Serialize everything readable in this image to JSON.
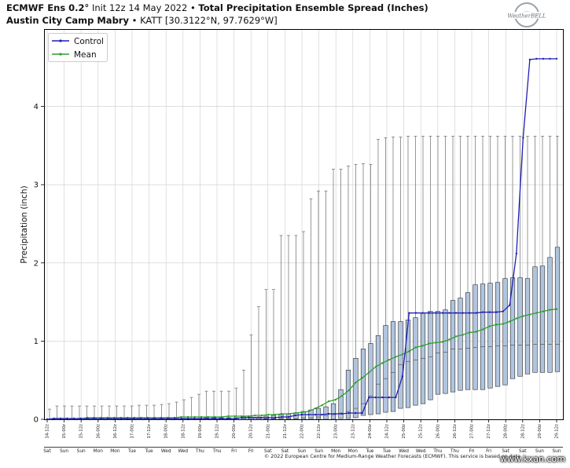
{
  "header": {
    "model": "ECMWF Ens 0.2",
    "degree": "°",
    "init": "Init 12z 14 May 2022",
    "bullet": "•",
    "product": "Total Precipitation Ensemble Spread (Inches)",
    "location": "Austin City Camp Mabry",
    "station": "KATT [30.3122°N, 97.7629°W]"
  },
  "logo_text": "WeatherBELL",
  "credit": "© 2022 European Centre for Medium-Range Weather Forecasts (ECMWF). This service is based on data",
  "watermark": "www.kxan.com",
  "colors": {
    "control": "#1f1fb4",
    "mean": "#2ca02c",
    "box_fill": "#b0c4de",
    "box_edge": "#2b2b2b",
    "grid": "#cccccc"
  },
  "chart_data": {
    "type": "box",
    "title": "Total Precipitation Ensemble Spread (Inches)",
    "ylabel": "Precipitation (inch)",
    "ylim": [
      0,
      4.97
    ],
    "yticks": [
      0,
      1,
      2,
      3,
      4
    ],
    "legend": {
      "position": "top-left",
      "entries": [
        "Control",
        "Mean"
      ]
    },
    "times": [
      "14-12z",
      "15-00z",
      "15-12z",
      "16-00z",
      "16-12z",
      "17-00z",
      "17-12z",
      "18-00z",
      "18-12z",
      "19-00z",
      "19-12z",
      "20-00z",
      "20-12z",
      "21-00z",
      "21-12z",
      "22-00z",
      "22-12z",
      "23-00z",
      "23-12z",
      "24-00z",
      "24-12z",
      "25-00z",
      "25-12z",
      "26-00z",
      "26-12z",
      "27-00z",
      "27-12z",
      "28-00z",
      "28-12z",
      "29-00z",
      "29-12z"
    ],
    "days": [
      "Sat",
      "Sun",
      "Sun",
      "Mon",
      "Mon",
      "Tue",
      "Tue",
      "Wed",
      "Wed",
      "Thu",
      "Thu",
      "Fri",
      "Fri",
      "Sat",
      "Sat",
      "Sun",
      "Sun",
      "Mon",
      "Mon",
      "Tue",
      "Tue",
      "Wed",
      "Wed",
      "Thu",
      "Thu",
      "Fri",
      "Fri",
      "Sat",
      "Sat",
      "Sun",
      "Sun"
    ],
    "control": [
      0,
      0.01,
      0.01,
      0.01,
      0.01,
      0.01,
      0.01,
      0.01,
      0.01,
      0.01,
      0.01,
      0.01,
      0.01,
      0.01,
      0.01,
      0.01,
      0.01,
      0.01,
      0.01,
      0.01,
      0.01,
      0.01,
      0.01,
      0.01,
      0.01,
      0.01,
      0.01,
      0.01,
      0.01,
      0.02,
      0.02,
      0.02,
      0.02,
      0.02,
      0.02,
      0.03,
      0.03,
      0.05,
      0.06,
      0.06,
      0.06,
      0.06,
      0.07,
      0.07,
      0.07,
      0.08,
      0.08,
      0.08,
      0.28,
      0.28,
      0.28,
      0.28,
      0.28,
      0.55,
      1.36,
      1.36,
      1.36,
      1.36,
      1.36,
      1.36,
      1.36,
      1.36,
      1.36,
      1.36,
      1.36,
      1.37,
      1.37,
      1.37,
      1.38,
      1.46,
      2.12,
      3.6,
      4.6,
      4.61,
      4.61,
      4.61,
      4.61
    ],
    "mean": [
      0,
      0.01,
      0.01,
      0.01,
      0.01,
      0.01,
      0.02,
      0.02,
      0.02,
      0.02,
      0.02,
      0.02,
      0.02,
      0.02,
      0.02,
      0.02,
      0.02,
      0.02,
      0.02,
      0.02,
      0.03,
      0.03,
      0.03,
      0.03,
      0.03,
      0.03,
      0.03,
      0.04,
      0.04,
      0.04,
      0.04,
      0.05,
      0.05,
      0.06,
      0.06,
      0.07,
      0.07,
      0.08,
      0.09,
      0.1,
      0.14,
      0.18,
      0.23,
      0.25,
      0.3,
      0.37,
      0.47,
      0.53,
      0.6,
      0.67,
      0.72,
      0.76,
      0.8,
      0.83,
      0.87,
      0.92,
      0.94,
      0.97,
      0.98,
      0.99,
      1.02,
      1.06,
      1.08,
      1.11,
      1.12,
      1.15,
      1.19,
      1.21,
      1.22,
      1.25,
      1.29,
      1.32,
      1.34,
      1.36,
      1.38,
      1.4,
      1.41
    ],
    "box_q1": [
      0,
      0,
      0,
      0,
      0,
      0,
      0,
      0,
      0,
      0,
      0,
      0,
      0,
      0,
      0,
      0,
      0,
      0,
      0,
      0,
      0,
      0,
      0,
      0,
      0,
      0,
      0,
      0,
      0,
      0,
      0,
      0,
      0,
      0,
      0,
      0,
      0,
      0,
      0,
      0.01,
      0.01,
      0.02,
      0.05,
      0.06,
      0.07,
      0.09,
      0.1,
      0.14,
      0.15,
      0.18,
      0.2,
      0.25,
      0.32,
      0.33,
      0.35,
      0.37,
      0.38,
      0.38,
      0.38,
      0.4,
      0.42,
      0.44,
      0.52,
      0.55,
      0.58,
      0.6,
      0.6,
      0.6,
      0.61,
      0.61,
      0.62,
      0.62,
      0.62,
      0.62,
      0.62
    ],
    "box_med": [
      0,
      0,
      0,
      0,
      0,
      0,
      0,
      0,
      0,
      0,
      0,
      0,
      0,
      0,
      0,
      0,
      0,
      0,
      0,
      0,
      0,
      0,
      0,
      0,
      0,
      0,
      0,
      0,
      0,
      0.01,
      0.01,
      0.01,
      0.01,
      0.01,
      0.02,
      0.02,
      0.03,
      0.05,
      0.06,
      0.08,
      0.1,
      0.14,
      0.2,
      0.3,
      0.45,
      0.52,
      0.6,
      0.7,
      0.74,
      0.76,
      0.78,
      0.8,
      0.85,
      0.86,
      0.9,
      0.9,
      0.91,
      0.92,
      0.93,
      0.93,
      0.94,
      0.94,
      0.95,
      0.95,
      0.95,
      0.96,
      0.96,
      0.96,
      0.96,
      0.97,
      0.97,
      0.97,
      0.97
    ],
    "box_q3": [
      0,
      0.01,
      0.01,
      0.01,
      0.01,
      0.01,
      0.01,
      0.01,
      0.01,
      0.01,
      0.01,
      0.01,
      0.01,
      0.01,
      0.01,
      0.01,
      0.01,
      0.01,
      0.01,
      0.01,
      0.01,
      0.02,
      0.02,
      0.02,
      0.02,
      0.02,
      0.03,
      0.03,
      0.03,
      0.04,
      0.05,
      0.06,
      0.07,
      0.08,
      0.1,
      0.12,
      0.14,
      0.16,
      0.2,
      0.38,
      0.63,
      0.78,
      0.9,
      0.97,
      1.07,
      1.2,
      1.25,
      1.25,
      1.27,
      1.3,
      1.36,
      1.38,
      1.38,
      1.4,
      1.52,
      1.55,
      1.62,
      1.72,
      1.73,
      1.74,
      1.75,
      1.8,
      1.81,
      1.81,
      1.8,
      1.95,
      1.96,
      2.07,
      2.2
    ],
    "box_max": [
      0.13,
      0.17,
      0.17,
      0.17,
      0.17,
      0.17,
      0.17,
      0.17,
      0.17,
      0.17,
      0.17,
      0.18,
      0.18,
      0.19,
      0.2,
      0.22,
      0.25,
      0.28,
      0.32,
      0.36,
      0.36,
      0.36,
      0.4,
      0.63,
      1.08,
      1.44,
      1.66,
      2.35,
      2.35,
      2.35,
      2.4,
      2.82,
      2.92,
      2.92,
      3.2,
      3.24,
      3.26,
      3.27,
      3.26,
      3.58,
      3.6,
      3.61,
      3.62,
      3.62,
      3.62,
      3.62,
      3.62,
      3.62,
      3.62,
      3.62,
      3.62,
      3.62,
      3.62,
      3.62,
      3.62,
      3.62,
      3.62,
      3.62,
      3.62,
      3.62,
      3.62
    ]
  }
}
